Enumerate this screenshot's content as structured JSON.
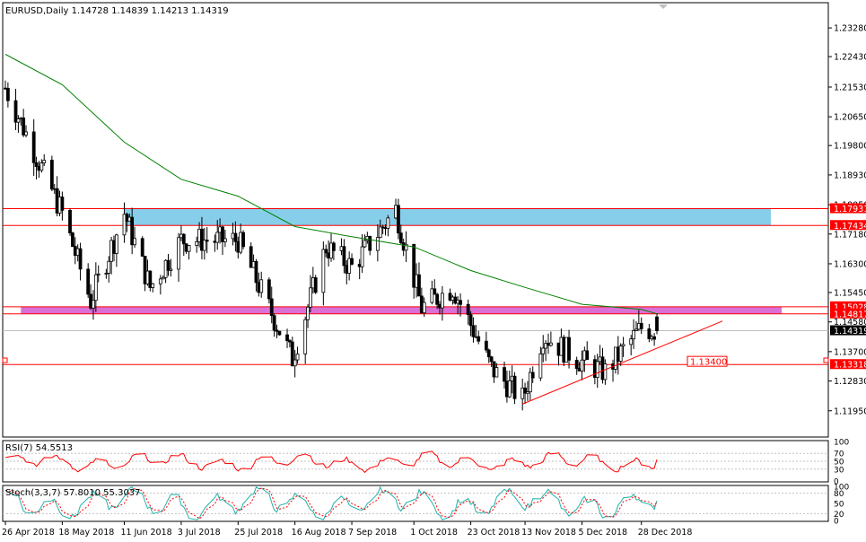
{
  "colors": {
    "background": "#ffffff",
    "frame": "#000000",
    "candle_up": "#ffffff",
    "candle_down": "#000000",
    "wick": "#000000",
    "ma_line": "#008000",
    "blue_zone": "#87ceeb",
    "pink_zone": "#da70d6",
    "level_line": "#ff0000",
    "price_label_bg": "#ff0000",
    "rsi_line": "#ff0000",
    "stoch_main": "#20b2aa",
    "stoch_signal": "#ff0000"
  },
  "chart_data": [
    {
      "type": "candlestick",
      "title": "EURUSD,Daily  1.14728 1.14839 1.14213 1.14319",
      "symbol": "EURUSD",
      "timeframe": "Daily",
      "ohlc_last": {
        "open": 1.14728,
        "high": 1.14839,
        "low": 1.14213,
        "close": 1.14319
      },
      "ylim": [
        1.112,
        1.24
      ],
      "y_ticks": [
        "1.23280",
        "1.22430",
        "1.21530",
        "1.20650",
        "1.19800",
        "1.18930",
        "1.18050",
        "1.17180",
        "1.16300",
        "1.15450",
        "1.14580",
        "1.13700",
        "1.12830",
        "1.11950"
      ],
      "x_ticks": [
        "26 Apr 2018",
        "18 May 2018",
        "11 Jun 2018",
        "3 Jul 2018",
        "25 Jul 2018",
        "16 Aug 2018",
        "7 Sep 2018",
        "1 Oct 2018",
        "23 Oct 2018",
        "13 Nov 2018",
        "5 Dec 2018",
        "28 Dec 2018"
      ],
      "close_anchors": [
        {
          "date": "26 Apr 2018",
          "close": 1.215
        },
        {
          "date": "18 May 2018",
          "close": 1.178
        },
        {
          "date": "29 May 2018",
          "close": 1.152
        },
        {
          "date": "11 Jun 2018",
          "close": 1.178
        },
        {
          "date": "21 Jun 2018",
          "close": 1.156
        },
        {
          "date": "3 Jul 2018",
          "close": 1.17
        },
        {
          "date": "25 Jul 2018",
          "close": 1.17
        },
        {
          "date": "15 Aug 2018",
          "close": 1.135
        },
        {
          "date": "28 Aug 2018",
          "close": 1.168
        },
        {
          "date": "7 Sep 2018",
          "close": 1.162
        },
        {
          "date": "24 Sep 2018",
          "close": 1.179
        },
        {
          "date": "4 Oct 2018",
          "close": 1.15
        },
        {
          "date": "16 Oct 2018",
          "close": 1.156
        },
        {
          "date": "23 Oct 2018",
          "close": 1.145
        },
        {
          "date": "31 Oct 2018",
          "close": 1.132
        },
        {
          "date": "12 Nov 2018",
          "close": 1.123
        },
        {
          "date": "20 Nov 2018",
          "close": 1.142
        },
        {
          "date": "5 Dec 2018",
          "close": 1.134
        },
        {
          "date": "14 Dec 2018",
          "close": 1.131
        },
        {
          "date": "28 Dec 2018",
          "close": 1.144
        },
        {
          "date": "3 Jan 2019",
          "close": 1.1432
        }
      ],
      "moving_average": [
        {
          "date": "26 Apr 2018",
          "value": 1.225
        },
        {
          "date": "18 May 2018",
          "value": 1.216
        },
        {
          "date": "11 Jun 2018",
          "value": 1.199
        },
        {
          "date": "3 Jul 2018",
          "value": 1.188
        },
        {
          "date": "25 Jul 2018",
          "value": 1.183
        },
        {
          "date": "16 Aug 2018",
          "value": 1.174
        },
        {
          "date": "7 Sep 2018",
          "value": 1.171
        },
        {
          "date": "1 Oct 2018",
          "value": 1.168
        },
        {
          "date": "23 Oct 2018",
          "value": 1.161
        },
        {
          "date": "13 Nov 2018",
          "value": 1.156
        },
        {
          "date": "5 Dec 2018",
          "value": 1.151
        },
        {
          "date": "28 Dec 2018",
          "value": 1.1495
        },
        {
          "date": "3 Jan 2019",
          "value": 1.1482
        }
      ],
      "zones": [
        {
          "name": "blue",
          "from_date": "11 Jun 2018",
          "to_date": "3 Jan 2019",
          "low": 1.17434,
          "high": 1.17931
        },
        {
          "name": "pink",
          "from_date": "2 May 2018",
          "to_date": "3 Jan 2019",
          "low": 1.14817,
          "high": 1.15028
        }
      ],
      "levels": [
        {
          "value": 1.17931,
          "label": "1.17931"
        },
        {
          "value": 1.17434,
          "label": "1.17434"
        },
        {
          "value": 1.15028,
          "label": "1.15028"
        },
        {
          "value": 1.14817,
          "label": "1.14817"
        },
        {
          "value": 1.13318,
          "label": "1.13318"
        }
      ],
      "current_price": {
        "value": 1.14319,
        "label": "1.14319"
      },
      "trendline": {
        "start": {
          "date": "12 Nov 2018",
          "value": 1.1215
        },
        "end": {
          "date": "3 Jan 2019",
          "value": 1.138
        }
      },
      "annotation": {
        "value": 1.134,
        "label": "1.13400"
      }
    },
    {
      "type": "line",
      "title": "RSI(7) 54.5513",
      "ylim": [
        0,
        100
      ],
      "y_ticks": [
        "100",
        "70",
        "50",
        "30",
        "0"
      ],
      "levels": [
        70,
        50,
        30
      ],
      "series": [
        {
          "name": "RSI(7)",
          "last": 54.5513
        }
      ]
    },
    {
      "type": "line",
      "title": "Stoch(3,3,7) 57.8010 55.3037",
      "ylim": [
        0,
        100
      ],
      "y_ticks": [
        "100",
        "80",
        "50",
        "20",
        "0"
      ],
      "levels": [
        80,
        20
      ],
      "series": [
        {
          "name": "Stoch main",
          "last": 57.801
        },
        {
          "name": "Stoch signal",
          "last": 55.3037
        }
      ]
    }
  ]
}
